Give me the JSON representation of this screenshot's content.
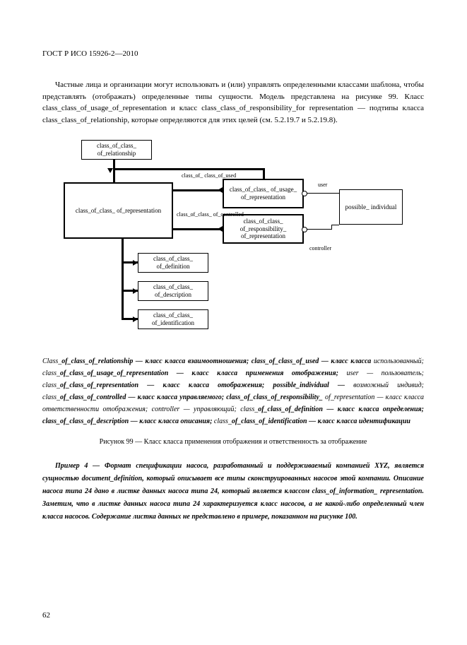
{
  "doc_header": "ГОСТ Р ИСО 15926-2—2010",
  "paragraph1": "Частные лица и организации могут использовать и (или) управлять определенными классами шаблона, чтобы представлять (отображать) определенные типы сущности. Модель представлена на рисунке 99. Класс class_class_of_usage_of_representation и класс class_class_of_responsibility_for representation — подтипы класса class_class_of_relationship, которые определяются для этих целей (см. 5.2.19.7 и 5.2.19.8).",
  "nodes": {
    "relationship": "class_of_class_\nof_relationship",
    "representation": "class_of_class_\nof_representation",
    "usage": "class_of_class_\nof_usage_\nof_representation",
    "responsibility": "class_of_class_\nof_responsibility_\nof_representation",
    "possible": "possible_\nindividual",
    "definition": "class_of_class_\nof_definition",
    "description": "class_of_class_\nof_description",
    "identification": "class_of_class_\nof_identification"
  },
  "edge_labels": {
    "used": "class_of_\nclass_of_used",
    "controlled": "class_of_class_\nof_controlled",
    "user": "user",
    "controller": "controller"
  },
  "legend": "Class_<b>of_class_of_relationship — класс класса взаимоотношения; class_of_class_of_used — класс класса</b> использованный; class_<b>of_class_of_usage_of_representation — класс класса применения отображения;</b> user — пользователь; class_<b>of_class_of_representation — класс класса отображения; possible_individual —</b> возможный индивид; class_<b>of_class_of_controlled — класс класса управляемого; class_of_class_of_responsibility_</b> of_representation — класс класса ответственности отображения; controller — управляющий; class_<b>of_class_of_definition — класс класса определения; class_of_class_of_description — класс класса описания;</b> class_<b>of_class_of_identification — класс класса идентификации</b>",
  "figure_caption": "Рисунок 99 — Класс класса применения отображения и ответственность за отображение",
  "example": "Пример 4 — Формат спецификации насоса, разработанный и поддерживаемый компанией XYZ, является сущностью document_definition, который описывает все типы сконструированных насосов этой компании. Описание насоса типа 24 дано в листке данных насоса типа 24, который является классом class_of_information_ representation. Заметим, что в листке данных насоса типа 24 характеризуется класс насосов, а не какой-либо определенный член класса насосов. Содержание листка данных не представлено в примере, показанном на рисунке 100.",
  "page_number": "62"
}
